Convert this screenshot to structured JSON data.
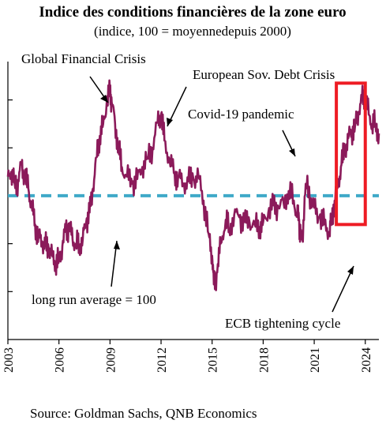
{
  "chart_data": {
    "type": "line",
    "title": "Indice des conditions financières de la zone euro",
    "subtitle": "(indice, 100 = moyennedepuis 2000)",
    "source": "Source: Goldman Sachs, QNB Economics",
    "x_ticks": [
      "2003",
      "2006",
      "2009",
      "2012",
      "2015",
      "2018",
      "2021",
      "2024"
    ],
    "xlim": [
      2003,
      2024.8
    ],
    "ylim": [
      94,
      105.6
    ],
    "y_tick_values": [
      96,
      98,
      100,
      102,
      104
    ],
    "y_tick_labels_shown": false,
    "average": {
      "value": 100,
      "label": "long run average = 100",
      "color": "#3fa9c8"
    },
    "series": [
      {
        "color": "#8b1a5a",
        "x": [
          2003.0,
          2003.2,
          2003.4,
          2003.6,
          2003.8,
          2004.0,
          2004.2,
          2004.4,
          2004.6,
          2004.8,
          2005.0,
          2005.2,
          2005.4,
          2005.6,
          2005.8,
          2006.0,
          2006.2,
          2006.4,
          2006.6,
          2006.8,
          2007.0,
          2007.2,
          2007.4,
          2007.6,
          2007.8,
          2008.0,
          2008.2,
          2008.4,
          2008.6,
          2008.8,
          2009.0,
          2009.1,
          2009.3,
          2009.5,
          2009.7,
          2010.0,
          2010.3,
          2010.6,
          2010.9,
          2011.2,
          2011.5,
          2011.8,
          2012.0,
          2012.2,
          2012.5,
          2012.8,
          2013.0,
          2013.3,
          2013.6,
          2013.9,
          2014.2,
          2014.5,
          2014.8,
          2015.0,
          2015.1,
          2015.3,
          2015.5,
          2015.8,
          2016.0,
          2016.3,
          2016.6,
          2016.9,
          2017.2,
          2017.5,
          2017.8,
          2018.0,
          2018.3,
          2018.6,
          2018.9,
          2019.2,
          2019.5,
          2019.8,
          2020.0,
          2020.1,
          2020.2,
          2020.3,
          2020.5,
          2020.8,
          2021.0,
          2021.3,
          2021.6,
          2021.9,
          2022.0,
          2022.2,
          2022.4,
          2022.6,
          2022.8,
          2023.0,
          2023.2,
          2023.4,
          2023.6,
          2023.8,
          2024.0,
          2024.2,
          2024.4,
          2024.6,
          2024.8
        ],
        "values": [
          100.8,
          101.0,
          100.5,
          100.6,
          101.3,
          100.8,
          100.3,
          99.6,
          98.8,
          98.3,
          98.1,
          97.9,
          97.8,
          97.5,
          97.2,
          97.3,
          97.9,
          98.6,
          98.7,
          98.2,
          98.0,
          97.9,
          98.2,
          98.9,
          99.3,
          100.3,
          101.6,
          102.5,
          103.0,
          103.8,
          104.4,
          103.9,
          103.0,
          102.0,
          101.2,
          100.8,
          100.5,
          100.7,
          101.2,
          101.6,
          102.0,
          103.1,
          103.4,
          102.3,
          101.5,
          100.9,
          100.8,
          100.5,
          100.6,
          100.7,
          100.8,
          99.8,
          98.4,
          97.5,
          96.3,
          96.8,
          98.0,
          99.0,
          98.6,
          99.2,
          99.1,
          98.9,
          98.9,
          98.8,
          98.7,
          98.9,
          99.3,
          99.6,
          99.5,
          99.7,
          100.2,
          99.8,
          99.2,
          99.0,
          98.3,
          98.2,
          100.5,
          99.9,
          99.5,
          99.1,
          98.8,
          98.5,
          99.0,
          99.8,
          100.5,
          101.3,
          101.9,
          102.4,
          102.7,
          102.9,
          103.5,
          104.0,
          104.2,
          103.4,
          103.0,
          103.0,
          102.6
        ]
      }
    ],
    "annotations": [
      {
        "text": "Global Financial Crisis",
        "x": 2009.0,
        "y": 104.4
      },
      {
        "text": "European Sov. Debt Crisis",
        "x": 2012.0,
        "y": 103.4
      },
      {
        "text": "Covid-19 pandemic",
        "x": 2020.1,
        "y": 102.5
      },
      {
        "text": "ECB tightening cycle",
        "x": 2023.2,
        "y": 99.0
      }
    ],
    "highlight": {
      "x_range": [
        2022.3,
        2024.0
      ],
      "y_range": [
        98.8,
        104.7
      ],
      "color": "#ee1c24"
    },
    "grid": false,
    "legend": "none"
  }
}
